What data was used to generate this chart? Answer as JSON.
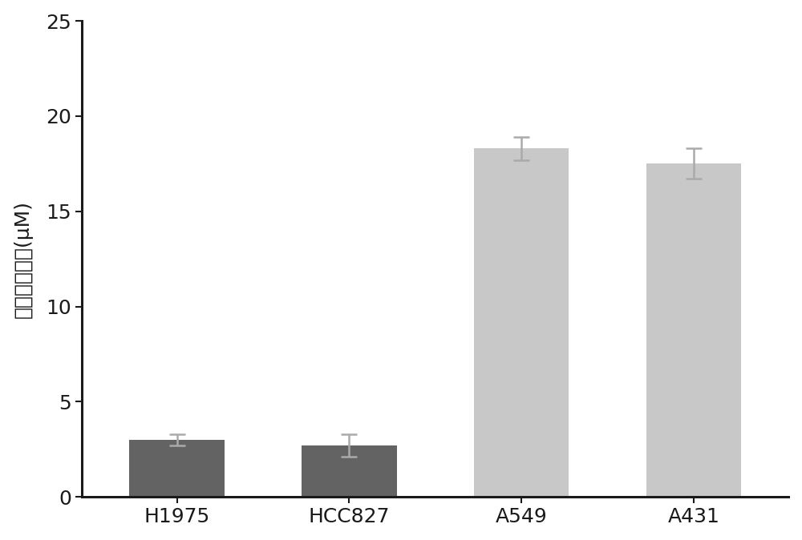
{
  "categories": [
    "H1975",
    "HCC827",
    "A549",
    "A431"
  ],
  "values": [
    3.0,
    2.7,
    18.3,
    17.5
  ],
  "errors": [
    0.3,
    0.6,
    0.6,
    0.8
  ],
  "bar_colors": [
    "#636363",
    "#636363",
    "#c8c8c8",
    "#c8c8c8"
  ],
  "error_color": "#aaaaaa",
  "ylabel_chars": [
    "半",
    "数",
    "抑",
    "制",
    "浓",
    "度",
    "(μM)"
  ],
  "ylim": [
    0,
    25
  ],
  "yticks": [
    0,
    5,
    10,
    15,
    20,
    25
  ],
  "background_color": "#ffffff",
  "bar_width": 0.55,
  "tick_fontsize": 18,
  "label_fontsize": 18,
  "spine_color": "#1a1a1a",
  "spine_linewidth": 2.2
}
